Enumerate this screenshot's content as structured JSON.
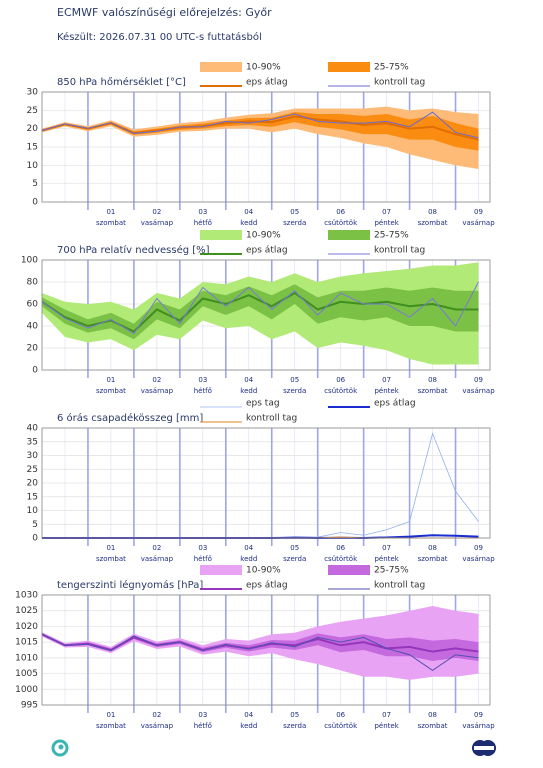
{
  "title": "ECMWF valószínűségi előrejelzés: Győr",
  "subtitle": "Készült: 2026.07.31 00 UTC-s futtatásból",
  "chart_data": [
    {
      "type": "meteogram",
      "title": "850 hPa hőmérséklet [°C]",
      "xlim": [
        0,
        9.75
      ],
      "xticks": [
        1,
        2,
        3,
        4,
        5,
        6,
        7,
        8,
        9
      ],
      "day_labels": [
        {
          "value": 1.5,
          "label": "01",
          "weekday": "szombat"
        },
        {
          "value": 2.5,
          "label": "02",
          "weekday": "vasárnap"
        },
        {
          "value": 3.5,
          "label": "03",
          "weekday": "hétfő"
        },
        {
          "value": 4.5,
          "label": "04",
          "weekday": "kedd"
        },
        {
          "value": 5.5,
          "label": "05",
          "weekday": "szerda"
        },
        {
          "value": 6.5,
          "label": "06",
          "weekday": "csütörtök"
        },
        {
          "value": 7.5,
          "label": "07",
          "weekday": "péntek"
        },
        {
          "value": 8.5,
          "label": "08",
          "weekday": "szombat"
        },
        {
          "value": 9.5,
          "label": "09",
          "weekday": "vasárnap"
        }
      ],
      "ylim": [
        0,
        30
      ],
      "yticks": [
        0,
        5,
        10,
        15,
        20,
        25,
        30
      ],
      "x": [
        0,
        0.5,
        1,
        1.5,
        2,
        2.5,
        3,
        3.5,
        4,
        4.5,
        5,
        5.5,
        6,
        6.5,
        7,
        7.5,
        8,
        8.5,
        9,
        9.5
      ],
      "series": [
        {
          "name": "10-90%",
          "color": "#fdbb77",
          "low": [
            19,
            20.6,
            19.3,
            20.7,
            17.8,
            18.3,
            19.2,
            19.4,
            20,
            20,
            19,
            20,
            18.5,
            17.5,
            16,
            15,
            13,
            11.5,
            10,
            9
          ],
          "high": [
            20,
            21.8,
            20.7,
            22.3,
            19.8,
            20.6,
            21.5,
            22,
            23,
            23.8,
            24.2,
            25.5,
            25.5,
            25.5,
            25.5,
            26,
            25,
            25.5,
            24.5,
            24
          ]
        },
        {
          "name": "25-75%",
          "color": "#fb8c12",
          "low": [
            19.3,
            20.9,
            19.7,
            21.1,
            18.3,
            18.9,
            19.7,
            20,
            20.7,
            21,
            20.5,
            21.8,
            20.5,
            19.8,
            18.5,
            18.5,
            17,
            17,
            15,
            14
          ],
          "high": [
            19.7,
            21.5,
            20.3,
            21.9,
            19.3,
            20,
            20.9,
            21.4,
            22.2,
            22.9,
            23,
            24.5,
            24,
            24,
            23.5,
            24,
            22.5,
            23.5,
            21.5,
            20
          ]
        },
        {
          "name": "eps átlag",
          "color": "#e06d00",
          "values": [
            19.5,
            21.2,
            20,
            21.5,
            18.8,
            19.5,
            20.3,
            20.7,
            21.5,
            22,
            21.8,
            23.3,
            22.5,
            22,
            21,
            21.5,
            20,
            20.5,
            18.5,
            17
          ]
        },
        {
          "name": "kontroll tag",
          "color": "#6a6ad0",
          "values": [
            19.5,
            21.3,
            20.1,
            21.6,
            18.7,
            19.3,
            20.5,
            20.5,
            22,
            21.5,
            22.5,
            24,
            22,
            21.5,
            21.5,
            22,
            20.5,
            24.5,
            19,
            17.5
          ]
        }
      ]
    },
    {
      "type": "meteogram",
      "title": "700 hPa relatív nedvesség [%]",
      "xlim": [
        0,
        9.75
      ],
      "xticks": [
        1,
        2,
        3,
        4,
        5,
        6,
        7,
        8,
        9
      ],
      "day_labels": [
        {
          "value": 1.5,
          "label": "01",
          "weekday": "szombat"
        },
        {
          "value": 2.5,
          "label": "02",
          "weekday": "vasárnap"
        },
        {
          "value": 3.5,
          "label": "03",
          "weekday": "hétfő"
        },
        {
          "value": 4.5,
          "label": "04",
          "weekday": "kedd"
        },
        {
          "value": 5.5,
          "label": "05",
          "weekday": "szerda"
        },
        {
          "value": 6.5,
          "label": "06",
          "weekday": "csütörtök"
        },
        {
          "value": 7.5,
          "label": "07",
          "weekday": "péntek"
        },
        {
          "value": 8.5,
          "label": "08",
          "weekday": "szombat"
        },
        {
          "value": 9.5,
          "label": "09",
          "weekday": "vasárnap"
        }
      ],
      "ylim": [
        0,
        100
      ],
      "yticks": [
        0,
        20,
        40,
        60,
        80,
        100
      ],
      "x": [
        0,
        0.5,
        1,
        1.5,
        2,
        2.5,
        3,
        3.5,
        4,
        4.5,
        5,
        5.5,
        6,
        6.5,
        7,
        7.5,
        8,
        8.5,
        9,
        9.5
      ],
      "series": [
        {
          "name": "10-90%",
          "color": "#b2ea78",
          "low": [
            52,
            30,
            25,
            28,
            18,
            32,
            28,
            45,
            38,
            40,
            28,
            35,
            20,
            25,
            22,
            18,
            10,
            5,
            5,
            5
          ],
          "high": [
            70,
            62,
            60,
            62,
            55,
            70,
            65,
            80,
            78,
            85,
            80,
            88,
            80,
            85,
            88,
            90,
            92,
            95,
            95,
            98
          ]
        },
        {
          "name": "25-75%",
          "color": "#7bc146",
          "low": [
            58,
            42,
            34,
            38,
            28,
            46,
            38,
            58,
            50,
            58,
            46,
            60,
            42,
            48,
            45,
            48,
            40,
            40,
            35,
            35
          ],
          "high": [
            66,
            55,
            46,
            52,
            42,
            62,
            55,
            72,
            68,
            76,
            68,
            78,
            66,
            72,
            72,
            75,
            72,
            75,
            72,
            72
          ]
        },
        {
          "name": "eps átlag",
          "color": "#3f8f1e",
          "values": [
            62,
            48,
            40,
            45,
            35,
            55,
            45,
            65,
            60,
            68,
            58,
            70,
            55,
            62,
            60,
            62,
            58,
            60,
            55,
            55
          ]
        },
        {
          "name": "kontroll tag",
          "color": "#7a7ad4",
          "values": [
            62,
            47,
            38,
            46,
            33,
            65,
            42,
            75,
            58,
            75,
            55,
            72,
            50,
            70,
            60,
            60,
            48,
            65,
            40,
            80
          ]
        }
      ]
    },
    {
      "type": "meteogram",
      "title": "6 órás csapadékösszeg [mm]",
      "xlim": [
        0,
        9.75
      ],
      "xticks": [
        1,
        2,
        3,
        4,
        5,
        6,
        7,
        8,
        9
      ],
      "day_labels": [
        {
          "value": 1.5,
          "label": "01",
          "weekday": "szombat"
        },
        {
          "value": 2.5,
          "label": "02",
          "weekday": "vasárnap"
        },
        {
          "value": 3.5,
          "label": "03",
          "weekday": "hétfő"
        },
        {
          "value": 4.5,
          "label": "04",
          "weekday": "kedd"
        },
        {
          "value": 5.5,
          "label": "05",
          "weekday": "szerda"
        },
        {
          "value": 6.5,
          "label": "06",
          "weekday": "csütörtök"
        },
        {
          "value": 7.5,
          "label": "07",
          "weekday": "péntek"
        },
        {
          "value": 8.5,
          "label": "08",
          "weekday": "szombat"
        },
        {
          "value": 9.5,
          "label": "09",
          "weekday": "vasárnap"
        }
      ],
      "ylim": [
        0,
        40
      ],
      "yticks": [
        0,
        5,
        10,
        15,
        20,
        25,
        30,
        35,
        40
      ],
      "x": [
        0,
        0.5,
        1,
        1.5,
        2,
        2.5,
        3,
        3.5,
        4,
        4.5,
        5,
        5.5,
        6,
        6.5,
        7,
        7.5,
        8,
        8.5,
        9,
        9.5
      ],
      "series": [
        {
          "name": "eps tag",
          "color": "#90b0f0",
          "values": [
            0,
            0,
            0,
            0,
            0,
            0,
            0,
            0,
            0,
            0.2,
            0,
            0.5,
            0.3,
            2,
            1,
            3,
            6,
            38,
            17,
            6
          ]
        },
        {
          "name": "eps átlag",
          "color": "#1a2bd0",
          "values": [
            0,
            0,
            0,
            0,
            0,
            0,
            0,
            0,
            0,
            0,
            0,
            0.1,
            0,
            0.1,
            0,
            0.2,
            0.5,
            1,
            0.8,
            0.5
          ]
        },
        {
          "name": "kontroll tag",
          "color": "#e08020",
          "values": [
            0,
            0,
            0,
            0,
            0,
            0,
            0,
            0,
            0,
            0,
            0,
            0,
            0,
            0.3,
            0,
            0,
            0,
            0,
            0,
            0
          ]
        }
      ]
    },
    {
      "type": "meteogram",
      "title": "tengerszinti légnyomás [hPa]",
      "xlim": [
        0,
        9.75
      ],
      "xticks": [
        1,
        2,
        3,
        4,
        5,
        6,
        7,
        8,
        9
      ],
      "day_labels": [
        {
          "value": 1.5,
          "label": "01",
          "weekday": "szombat"
        },
        {
          "value": 2.5,
          "label": "02",
          "weekday": "vasárnap"
        },
        {
          "value": 3.5,
          "label": "03",
          "weekday": "hétfő"
        },
        {
          "value": 4.5,
          "label": "04",
          "weekday": "kedd"
        },
        {
          "value": 5.5,
          "label": "05",
          "weekday": "szerda"
        },
        {
          "value": 6.5,
          "label": "06",
          "weekday": "csütörtök"
        },
        {
          "value": 7.5,
          "label": "07",
          "weekday": "péntek"
        },
        {
          "value": 8.5,
          "label": "08",
          "weekday": "szombat"
        },
        {
          "value": 9.5,
          "label": "09",
          "weekday": "vasárnap"
        }
      ],
      "ylim": [
        995,
        1030
      ],
      "yticks": [
        995,
        1000,
        1005,
        1010,
        1015,
        1020,
        1025,
        1030
      ],
      "x": [
        0,
        0.5,
        1,
        1.5,
        2,
        2.5,
        3,
        3.5,
        4,
        4.5,
        5,
        5.5,
        6,
        6.5,
        7,
        7.5,
        8,
        8.5,
        9,
        9.5
      ],
      "series": [
        {
          "name": "10-90%",
          "color": "#e9a3f5",
          "low": [
            1016.8,
            1013.3,
            1013.5,
            1011.5,
            1015.3,
            1012.8,
            1013.6,
            1011,
            1012,
            1010.5,
            1011.5,
            1009.5,
            1008,
            1006,
            1004,
            1004,
            1003,
            1004,
            1004,
            1005
          ],
          "high": [
            1018.2,
            1014.7,
            1015.5,
            1013.5,
            1017.7,
            1015.2,
            1016.3,
            1014,
            1016,
            1015.5,
            1017.5,
            1018,
            1020,
            1021.5,
            1022.5,
            1023.5,
            1025,
            1026.5,
            1025,
            1024
          ]
        },
        {
          "name": "25-75%",
          "color": "#c56ade",
          "low": [
            1017.2,
            1013.7,
            1014,
            1012,
            1016,
            1013.4,
            1014.4,
            1011.8,
            1013.2,
            1012,
            1013.3,
            1012.5,
            1014,
            1011.8,
            1012.5,
            1010.5,
            1010.5,
            1009,
            1010,
            1009
          ],
          "high": [
            1017.8,
            1014.3,
            1015,
            1013,
            1017,
            1014.6,
            1015.6,
            1013.2,
            1014.8,
            1014,
            1015.7,
            1015.5,
            1017.8,
            1016.5,
            1017.5,
            1016,
            1016.5,
            1015.5,
            1016,
            1015
          ]
        },
        {
          "name": "eps átlag",
          "color": "#9636bd",
          "values": [
            1017.5,
            1014,
            1014.5,
            1012.5,
            1016.5,
            1014,
            1015,
            1012.5,
            1014,
            1013,
            1014.5,
            1014,
            1016,
            1014,
            1015,
            1013,
            1013.5,
            1012,
            1013,
            1012
          ]
        },
        {
          "name": "kontroll tag",
          "color": "#5050b0",
          "values": [
            1017.5,
            1014,
            1014.3,
            1012.3,
            1017,
            1014,
            1015,
            1012.3,
            1014.3,
            1012.8,
            1014.8,
            1013.5,
            1016.5,
            1015,
            1016.5,
            1013,
            1011,
            1006,
            1011,
            1010
          ]
        }
      ]
    }
  ]
}
